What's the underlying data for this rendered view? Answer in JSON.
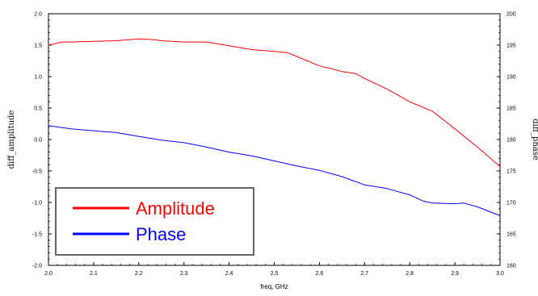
{
  "chart_data": {
    "type": "line",
    "title": "",
    "xlabel": "freq, GHz",
    "ylabel_left": "diff_amplitude",
    "ylabel_right": "diff_phase",
    "xlim": [
      2.0,
      3.0
    ],
    "ylim_left": [
      -2.0,
      2.0
    ],
    "ylim_right": [
      160,
      200
    ],
    "x_ticks": [
      "2.0",
      "2.1",
      "2.2",
      "2.3",
      "2.4",
      "2.5",
      "2.6",
      "2.7",
      "2.8",
      "2.9",
      "3.0"
    ],
    "y_left_ticks": [
      "2.0",
      "1.5",
      "1.0",
      "0.5",
      "0.0",
      "-0.5",
      "-1.0",
      "-1.5",
      "-2.0"
    ],
    "y_right_ticks": [
      "200",
      "195",
      "190",
      "185",
      "180",
      "175",
      "170",
      "165",
      "160"
    ],
    "grid": false,
    "legend_position": "bottom-left",
    "series": [
      {
        "name": "Amplitude",
        "color": "#ff0000",
        "axis": "left",
        "x": [
          2.0,
          2.03,
          2.05,
          2.1,
          2.15,
          2.2,
          2.23,
          2.25,
          2.3,
          2.35,
          2.4,
          2.45,
          2.5,
          2.53,
          2.55,
          2.6,
          2.63,
          2.65,
          2.68,
          2.7,
          2.75,
          2.8,
          2.85,
          2.9,
          2.95,
          3.0
        ],
        "y": [
          1.5,
          1.55,
          1.55,
          1.56,
          1.57,
          1.6,
          1.59,
          1.57,
          1.55,
          1.55,
          1.49,
          1.43,
          1.4,
          1.38,
          1.32,
          1.17,
          1.12,
          1.08,
          1.05,
          0.97,
          0.8,
          0.6,
          0.45,
          0.17,
          -0.12,
          -0.43
        ]
      },
      {
        "name": "Phase",
        "color": "#0000ff",
        "axis": "right",
        "x": [
          2.0,
          2.05,
          2.1,
          2.15,
          2.2,
          2.25,
          2.3,
          2.35,
          2.4,
          2.45,
          2.5,
          2.55,
          2.6,
          2.65,
          2.7,
          2.75,
          2.8,
          2.83,
          2.85,
          2.9,
          2.92,
          2.95,
          3.0
        ],
        "y": [
          182.2,
          181.7,
          181.4,
          181.1,
          180.5,
          179.9,
          179.5,
          178.8,
          178.0,
          177.4,
          176.6,
          175.8,
          175.1,
          174.1,
          172.8,
          172.2,
          171.2,
          170.2,
          169.9,
          169.8,
          169.9,
          169.3,
          167.9
        ]
      }
    ]
  },
  "legend": {
    "items": [
      {
        "label": "Amplitude",
        "color": "#ff0000"
      },
      {
        "label": "Phase",
        "color": "#0000ff"
      }
    ]
  }
}
